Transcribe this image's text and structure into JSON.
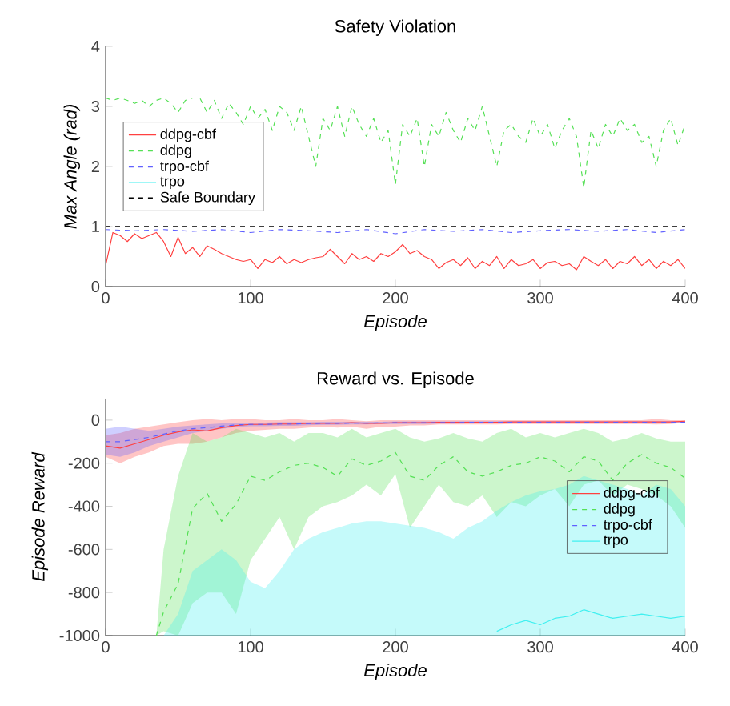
{
  "chart_data": [
    {
      "type": "line",
      "title": "Safety Violation",
      "xlabel": "Episode",
      "ylabel": "Max Angle (rad)",
      "xlim": [
        0,
        400
      ],
      "ylim": [
        0,
        4
      ],
      "xticks": [
        0,
        100,
        200,
        300,
        400
      ],
      "yticks": [
        0,
        1,
        2,
        3,
        4
      ],
      "legend": "left",
      "series": [
        {
          "name": "ddpg-cbf",
          "color": "#ff4040",
          "line_style": "solid",
          "x": [
            0,
            5,
            10,
            15,
            20,
            25,
            30,
            35,
            40,
            45,
            50,
            55,
            60,
            65,
            70,
            75,
            80,
            85,
            90,
            95,
            100,
            105,
            110,
            115,
            120,
            125,
            130,
            135,
            140,
            145,
            150,
            155,
            160,
            165,
            170,
            175,
            180,
            185,
            190,
            195,
            200,
            205,
            210,
            215,
            220,
            225,
            230,
            235,
            240,
            245,
            250,
            255,
            260,
            265,
            270,
            275,
            280,
            285,
            290,
            295,
            300,
            305,
            310,
            315,
            320,
            325,
            330,
            335,
            340,
            345,
            350,
            355,
            360,
            365,
            370,
            375,
            380,
            385,
            390,
            395,
            400
          ],
          "values": [
            0.35,
            0.9,
            0.85,
            0.75,
            0.88,
            0.8,
            0.85,
            0.9,
            0.75,
            0.5,
            0.82,
            0.55,
            0.65,
            0.5,
            0.68,
            0.62,
            0.55,
            0.5,
            0.45,
            0.42,
            0.45,
            0.3,
            0.45,
            0.4,
            0.5,
            0.38,
            0.45,
            0.4,
            0.45,
            0.48,
            0.5,
            0.62,
            0.5,
            0.38,
            0.55,
            0.45,
            0.5,
            0.42,
            0.55,
            0.5,
            0.58,
            0.7,
            0.55,
            0.6,
            0.5,
            0.45,
            0.3,
            0.4,
            0.45,
            0.35,
            0.48,
            0.3,
            0.42,
            0.35,
            0.5,
            0.3,
            0.45,
            0.35,
            0.38,
            0.45,
            0.3,
            0.4,
            0.42,
            0.35,
            0.38,
            0.28,
            0.5,
            0.42,
            0.35,
            0.45,
            0.3,
            0.42,
            0.38,
            0.5,
            0.35,
            0.45,
            0.3,
            0.42,
            0.35,
            0.45,
            0.3
          ]
        },
        {
          "name": "ddpg",
          "color": "#55e055",
          "line_style": "dashed",
          "x": [
            0,
            5,
            10,
            15,
            20,
            25,
            30,
            35,
            40,
            45,
            50,
            55,
            60,
            65,
            70,
            75,
            80,
            85,
            90,
            95,
            100,
            105,
            110,
            115,
            120,
            125,
            130,
            135,
            140,
            145,
            150,
            155,
            160,
            165,
            170,
            175,
            180,
            185,
            190,
            195,
            200,
            205,
            210,
            215,
            220,
            225,
            230,
            235,
            240,
            245,
            250,
            255,
            260,
            265,
            270,
            275,
            280,
            285,
            290,
            295,
            300,
            305,
            310,
            315,
            320,
            325,
            330,
            335,
            340,
            345,
            350,
            355,
            360,
            365,
            370,
            375,
            380,
            385,
            390,
            395,
            400
          ],
          "values": [
            3.14,
            3.1,
            3.14,
            3.1,
            3.05,
            3.1,
            3.0,
            3.1,
            3.14,
            3.05,
            2.9,
            3.1,
            3.14,
            3.14,
            2.9,
            3.1,
            2.8,
            3.05,
            2.9,
            2.7,
            3.0,
            2.8,
            2.95,
            2.6,
            3.0,
            2.9,
            2.6,
            3.0,
            2.5,
            2.0,
            2.8,
            2.6,
            3.0,
            2.5,
            3.0,
            2.7,
            2.5,
            2.8,
            2.4,
            2.6,
            1.7,
            2.7,
            2.5,
            2.8,
            2.0,
            2.7,
            2.5,
            2.9,
            2.6,
            2.4,
            2.8,
            2.6,
            3.0,
            2.5,
            2.0,
            2.6,
            2.7,
            2.5,
            2.4,
            2.8,
            2.5,
            2.7,
            2.3,
            2.6,
            2.8,
            2.5,
            1.65,
            2.6,
            2.3,
            2.7,
            2.5,
            2.8,
            2.6,
            2.7,
            2.4,
            2.5,
            2.0,
            2.6,
            2.8,
            2.35,
            2.7
          ]
        },
        {
          "name": "trpo-cbf",
          "color": "#6060ff",
          "line_style": "dashed",
          "x": [
            0,
            20,
            40,
            60,
            80,
            100,
            120,
            140,
            160,
            180,
            200,
            220,
            240,
            260,
            280,
            300,
            320,
            340,
            360,
            380,
            400
          ],
          "values": [
            0.95,
            0.93,
            0.95,
            0.92,
            0.95,
            0.9,
            0.95,
            0.93,
            0.9,
            0.95,
            0.88,
            0.95,
            0.92,
            0.95,
            0.9,
            0.93,
            0.95,
            0.92,
            0.95,
            0.9,
            0.95
          ]
        },
        {
          "name": "trpo",
          "color": "#40f0f0",
          "line_style": "solid",
          "x": [
            0,
            400
          ],
          "values": [
            3.14,
            3.14
          ]
        }
      ],
      "ref_lines": [
        {
          "axis": "y",
          "value": 1,
          "label": "Safe Boundary",
          "color": "#000000",
          "line_style": "dashed"
        }
      ]
    },
    {
      "type": "line",
      "title": "Reward vs. Episode",
      "xlabel": "Episode",
      "ylabel": "Episode Reward",
      "xlim": [
        0,
        400
      ],
      "ylim": [
        -1000,
        100
      ],
      "xticks": [
        0,
        100,
        200,
        300,
        400
      ],
      "yticks": [
        -1000,
        -800,
        -600,
        -400,
        -200,
        0
      ],
      "legend": "right",
      "x": [
        0,
        10,
        20,
        30,
        40,
        50,
        60,
        70,
        80,
        90,
        100,
        110,
        120,
        130,
        140,
        150,
        160,
        170,
        180,
        190,
        200,
        210,
        220,
        230,
        240,
        250,
        260,
        270,
        280,
        290,
        300,
        310,
        320,
        330,
        340,
        350,
        360,
        370,
        380,
        390,
        400
      ],
      "series": [
        {
          "name": "ddpg-cbf",
          "color": "#ff4040",
          "line_style": "solid",
          "values": [
            -120,
            -130,
            -110,
            -90,
            -70,
            -55,
            -45,
            -50,
            -35,
            -25,
            -20,
            -20,
            -18,
            -18,
            -15,
            -15,
            -15,
            -12,
            -15,
            -15,
            -12,
            -12,
            -12,
            -10,
            -10,
            -10,
            -10,
            -10,
            -8,
            -8,
            -8,
            -8,
            -8,
            -8,
            -8,
            -8,
            -8,
            -8,
            -8,
            -8,
            -5
          ],
          "upper": [
            -70,
            -60,
            -40,
            -30,
            -20,
            -10,
            0,
            5,
            0,
            5,
            5,
            0,
            0,
            5,
            0,
            0,
            5,
            0,
            -5,
            0,
            0,
            0,
            0,
            0,
            0,
            0,
            0,
            0,
            0,
            0,
            0,
            0,
            0,
            0,
            0,
            0,
            0,
            0,
            5,
            0,
            0
          ],
          "lower": [
            -170,
            -200,
            -170,
            -150,
            -120,
            -110,
            -110,
            -100,
            -80,
            -60,
            -50,
            -45,
            -40,
            -40,
            -35,
            -30,
            -35,
            -30,
            -40,
            -30,
            -30,
            -25,
            -25,
            -20,
            -20,
            -20,
            -20,
            -20,
            -18,
            -18,
            -18,
            -18,
            -18,
            -18,
            -18,
            -18,
            -18,
            -18,
            -20,
            -18,
            -12
          ]
        },
        {
          "name": "ddpg",
          "color": "#55e055",
          "line_style": "dashed",
          "x": [
            35,
            40,
            50,
            60,
            70,
            80,
            90,
            100,
            110,
            120,
            130,
            140,
            150,
            160,
            170,
            180,
            190,
            200,
            210,
            220,
            230,
            240,
            250,
            260,
            270,
            280,
            290,
            300,
            310,
            320,
            330,
            340,
            350,
            360,
            370,
            380,
            390,
            400
          ],
          "values": [
            -1000,
            -890,
            -760,
            -410,
            -340,
            -470,
            -390,
            -260,
            -280,
            -240,
            -210,
            -200,
            -220,
            -260,
            -180,
            -210,
            -190,
            -150,
            -260,
            -280,
            -210,
            -170,
            -240,
            -260,
            -240,
            -210,
            -200,
            -170,
            -190,
            -240,
            -170,
            -190,
            -280,
            -200,
            -160,
            -200,
            -220,
            -270
          ],
          "upper": [
            -1000,
            -600,
            -260,
            -60,
            -100,
            -80,
            -40,
            -60,
            -80,
            -60,
            -100,
            -60,
            -60,
            -80,
            -40,
            -80,
            -60,
            -40,
            -80,
            -100,
            -85,
            -60,
            -85,
            -100,
            -60,
            -40,
            -80,
            -60,
            -80,
            -60,
            -40,
            -60,
            -100,
            -85,
            -60,
            -85,
            -100,
            -100
          ],
          "lower": [
            -1000,
            -980,
            -1000,
            -850,
            -800,
            -800,
            -900,
            -650,
            -550,
            -450,
            -600,
            -450,
            -400,
            -380,
            -350,
            -300,
            -350,
            -250,
            -500,
            -400,
            -300,
            -380,
            -400,
            -350,
            -450,
            -380,
            -400,
            -350,
            -320,
            -400,
            -300,
            -280,
            -350,
            -300,
            -320,
            -350,
            -400,
            -500
          ]
        },
        {
          "name": "trpo-cbf",
          "color": "#6060ff",
          "line_style": "dashed",
          "values": [
            -100,
            -100,
            -90,
            -80,
            -65,
            -50,
            -40,
            -35,
            -28,
            -22,
            -20,
            -20,
            -18,
            -18,
            -16,
            -15,
            -15,
            -14,
            -14,
            -13,
            -12,
            -12,
            -12,
            -11,
            -11,
            -10,
            -10,
            -10,
            -10,
            -10,
            -10,
            -10,
            -10,
            -10,
            -10,
            -10,
            -10,
            -10,
            -10,
            -10,
            -10
          ],
          "upper": [
            -40,
            -30,
            -40,
            -50,
            -40,
            -30,
            -25,
            -20,
            -15,
            -12,
            -12,
            -12,
            -10,
            -10,
            -10,
            -8,
            -8,
            -8,
            -8,
            -8,
            -6,
            -6,
            -6,
            -6,
            -6,
            -5,
            -5,
            -5,
            -5,
            -5,
            -5,
            -5,
            -5,
            -5,
            -5,
            -5,
            -5,
            -5,
            -5,
            -5,
            -5
          ],
          "lower": [
            -160,
            -170,
            -150,
            -120,
            -100,
            -80,
            -60,
            -50,
            -40,
            -32,
            -28,
            -28,
            -26,
            -26,
            -24,
            -22,
            -22,
            -20,
            -20,
            -18,
            -18,
            -18,
            -18,
            -16,
            -16,
            -15,
            -15,
            -15,
            -15,
            -15,
            -15,
            -15,
            -15,
            -15,
            -15,
            -15,
            -15,
            -15,
            -15,
            -15,
            -15
          ]
        },
        {
          "name": "trpo",
          "color": "#40f0f0",
          "line_style": "solid",
          "x": [
            40,
            50,
            60,
            70,
            80,
            90,
            100,
            110,
            120,
            130,
            140,
            150,
            160,
            170,
            180,
            190,
            200,
            210,
            220,
            230,
            240,
            250,
            260,
            270,
            280,
            290,
            300,
            310,
            320,
            330,
            340,
            350,
            360,
            370,
            380,
            390,
            400
          ],
          "values": [
            null,
            null,
            null,
            null,
            null,
            null,
            null,
            null,
            null,
            null,
            null,
            null,
            null,
            null,
            null,
            null,
            null,
            null,
            null,
            null,
            null,
            null,
            null,
            -980,
            -950,
            -930,
            -950,
            -920,
            -910,
            -880,
            -900,
            -920,
            -910,
            -900,
            -910,
            -920,
            -910
          ],
          "upper": [
            -1000,
            -900,
            -700,
            -650,
            -600,
            -650,
            -750,
            -780,
            -700,
            -600,
            -550,
            -520,
            -500,
            -480,
            -470,
            -470,
            -480,
            -490,
            -500,
            -520,
            -550,
            -500,
            -470,
            -420,
            -380,
            -350,
            -330,
            -320,
            -300,
            -260,
            -280,
            -300,
            -320,
            -350,
            -300,
            -320,
            -400
          ],
          "lower": [
            -1000,
            -1000,
            -1000,
            -1000,
            -1000,
            -1000,
            -1000,
            -1000,
            -1000,
            -1000,
            -1000,
            -1000,
            -1000,
            -1000,
            -1000,
            -1000,
            -1000,
            -1000,
            -1000,
            -1000,
            -1000,
            -1000,
            -1000,
            -1000,
            -1000,
            -1000,
            -1000,
            -1000,
            -1000,
            -1000,
            -1000,
            -1000,
            -1000,
            -1000,
            -1000,
            -1000,
            -1000
          ]
        }
      ]
    }
  ]
}
